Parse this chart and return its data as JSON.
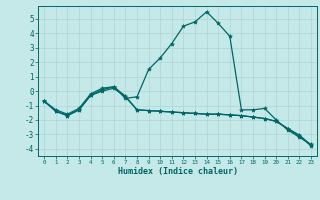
{
  "xlabel": "Humidex (Indice chaleur)",
  "bg_color": "#c5e8e8",
  "line_color": "#006666",
  "grid_color": "#b0d4d4",
  "xlim": [
    -0.5,
    23.5
  ],
  "ylim": [
    -4.5,
    5.9
  ],
  "yticks": [
    -4,
    -3,
    -2,
    -1,
    0,
    1,
    2,
    3,
    4,
    5
  ],
  "xticks": [
    0,
    1,
    2,
    3,
    4,
    5,
    6,
    7,
    8,
    9,
    10,
    11,
    12,
    13,
    14,
    15,
    16,
    17,
    18,
    19,
    20,
    21,
    22,
    23
  ],
  "series": [
    {
      "x": [
        0,
        1,
        2,
        3,
        4,
        5,
        6,
        7,
        8,
        9,
        10,
        11,
        12,
        13,
        14,
        15,
        16,
        17,
        18,
        19,
        20,
        21,
        22,
        23
      ],
      "y": [
        -0.7,
        -1.3,
        -1.6,
        -1.2,
        -0.2,
        0.2,
        0.3,
        -0.5,
        -0.4,
        1.5,
        2.3,
        3.3,
        4.5,
        4.8,
        5.5,
        4.7,
        3.8,
        -1.3,
        -1.3,
        -1.2,
        -2.0,
        -2.7,
        -3.2,
        -3.7
      ]
    },
    {
      "x": [
        0,
        1,
        2,
        3,
        4,
        5,
        6,
        7,
        8,
        9,
        10,
        11,
        12,
        13,
        14,
        15,
        16,
        17,
        18,
        19,
        20,
        21,
        22,
        23
      ],
      "y": [
        -0.7,
        -1.4,
        -1.7,
        -1.3,
        -0.3,
        0.0,
        0.2,
        -0.4,
        -1.3,
        -1.35,
        -1.4,
        -1.45,
        -1.5,
        -1.55,
        -1.6,
        -1.6,
        -1.65,
        -1.7,
        -1.8,
        -1.9,
        -2.1,
        -2.6,
        -3.1,
        -3.8
      ]
    },
    {
      "x": [
        0,
        1,
        2,
        3,
        4,
        5,
        6,
        7,
        8,
        9,
        10,
        11,
        12,
        13,
        14,
        15,
        16,
        17,
        18,
        19,
        20,
        21,
        22,
        23
      ],
      "y": [
        -0.7,
        -1.4,
        -1.7,
        -1.3,
        -0.3,
        0.1,
        0.3,
        -0.35,
        -1.3,
        -1.35,
        -1.4,
        -1.45,
        -1.5,
        -1.55,
        -1.6,
        -1.6,
        -1.65,
        -1.7,
        -1.8,
        -1.9,
        -2.1,
        -2.6,
        -3.05,
        -3.75
      ]
    }
  ],
  "marker": "*",
  "markersize": 3.0,
  "linewidth": 0.9
}
